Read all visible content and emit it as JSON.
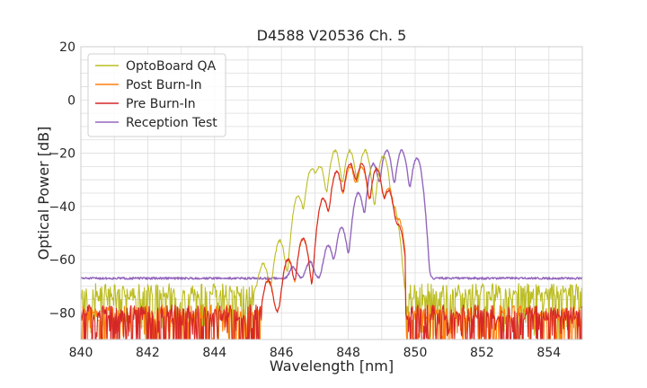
{
  "chart_data": {
    "type": "line",
    "title": "D4588 V20536 Ch. 5",
    "xlabel": "Wavelength [nm]",
    "ylabel": "Optical Power [dB]",
    "xlim": [
      840,
      855
    ],
    "ylim": [
      -90,
      20
    ],
    "xticks": [
      840,
      842,
      844,
      846,
      848,
      850,
      852,
      854
    ],
    "xtick_labels": [
      "840",
      "842",
      "844",
      "846",
      "848",
      "850",
      "852",
      "854"
    ],
    "yticks": [
      -80,
      -60,
      -40,
      -20,
      0,
      20
    ],
    "ytick_labels": [
      "−80",
      "−60",
      "−40",
      "−20",
      "0",
      "20"
    ],
    "grid": true,
    "legend_position": "top-left",
    "series": [
      {
        "name": "OptoBoard QA",
        "color": "#bcbd22",
        "noise_floor": -72,
        "peaks": [
          {
            "x": 845.45,
            "y": -62
          },
          {
            "x": 845.95,
            "y": -53
          },
          {
            "x": 846.5,
            "y": -36
          },
          {
            "x": 846.9,
            "y": -26
          },
          {
            "x": 847.15,
            "y": -25
          },
          {
            "x": 847.6,
            "y": -19
          },
          {
            "x": 848.05,
            "y": -19
          },
          {
            "x": 848.5,
            "y": -19
          },
          {
            "x": 849.05,
            "y": -21
          },
          {
            "x": 849.35,
            "y": -40
          }
        ],
        "band": [
          845.2,
          849.7
        ]
      },
      {
        "name": "Post Burn-In",
        "color": "#ff7f0e",
        "noise_floor": -80,
        "peaks": [
          {
            "x": 845.6,
            "y": -68
          },
          {
            "x": 846.2,
            "y": -60
          },
          {
            "x": 846.65,
            "y": -52
          },
          {
            "x": 847.25,
            "y": -37
          },
          {
            "x": 847.65,
            "y": -27
          },
          {
            "x": 848.05,
            "y": -25
          },
          {
            "x": 848.4,
            "y": -25
          },
          {
            "x": 848.85,
            "y": -26
          },
          {
            "x": 849.2,
            "y": -33
          },
          {
            "x": 849.5,
            "y": -45
          }
        ],
        "band": [
          845.4,
          849.7
        ]
      },
      {
        "name": "Pre Burn-In",
        "color": "#d62728",
        "noise_floor": -80,
        "peaks": [
          {
            "x": 845.6,
            "y": -68
          },
          {
            "x": 846.2,
            "y": -60
          },
          {
            "x": 846.65,
            "y": -52
          },
          {
            "x": 847.25,
            "y": -37
          },
          {
            "x": 847.65,
            "y": -27
          },
          {
            "x": 848.05,
            "y": -24
          },
          {
            "x": 848.4,
            "y": -24
          },
          {
            "x": 848.85,
            "y": -26
          },
          {
            "x": 849.2,
            "y": -34
          },
          {
            "x": 849.5,
            "y": -47
          }
        ],
        "band": [
          845.4,
          849.7
        ]
      },
      {
        "name": "Reception Test",
        "color": "#9467bd",
        "noise_floor": -67,
        "peaks": [
          {
            "x": 846.35,
            "y": -65
          },
          {
            "x": 846.85,
            "y": -62
          },
          {
            "x": 847.4,
            "y": -55
          },
          {
            "x": 847.8,
            "y": -48
          },
          {
            "x": 848.3,
            "y": -35
          },
          {
            "x": 848.75,
            "y": -24
          },
          {
            "x": 849.15,
            "y": -19
          },
          {
            "x": 849.6,
            "y": -19
          },
          {
            "x": 850.05,
            "y": -22
          }
        ],
        "band": [
          846.0,
          850.4
        ]
      }
    ]
  }
}
